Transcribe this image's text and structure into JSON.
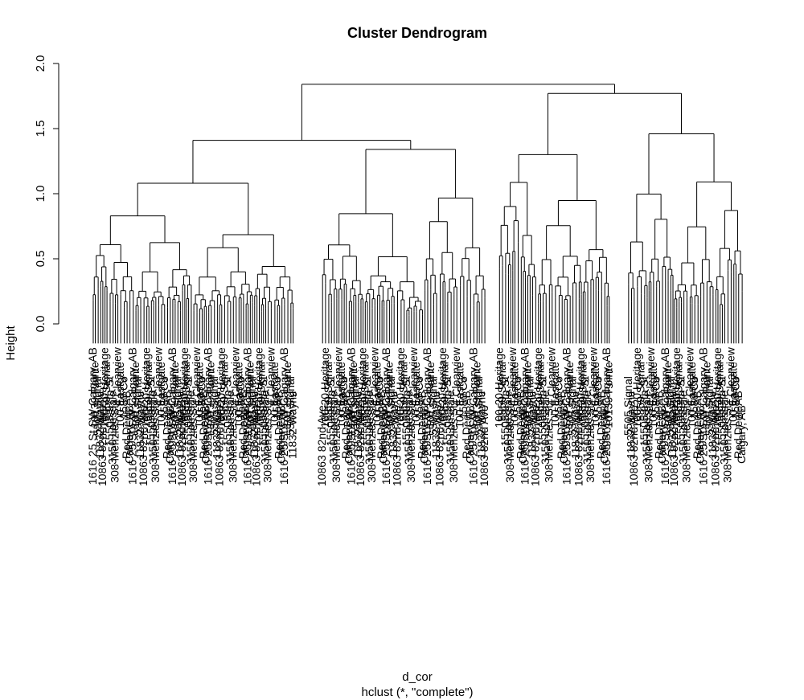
{
  "chart_data": {
    "type": "dendrogram",
    "title": "Cluster Dendrogram",
    "xlabel": "d_cor",
    "sublabel": "hclust (*, \"complete\")",
    "ylabel": "Height",
    "ylim": [
      0,
      2.0
    ],
    "yticks": [
      "0.0",
      "0.5",
      "1.0",
      "1.5",
      "2.0"
    ],
    "top_merges": [
      {
        "name": "root",
        "height": 1.84,
        "children": [
          "left-cluster",
          "right-cluster"
        ]
      },
      {
        "name": "left-cluster",
        "height": 1.41,
        "children": [
          "left-a",
          "left-b"
        ]
      },
      {
        "name": "right-cluster",
        "height": 1.77,
        "children": [
          "right-a",
          "right-b"
        ]
      },
      {
        "name": "left-a",
        "height": 1.08,
        "children": [],
        "span": [
          0.012,
          0.316
        ]
      },
      {
        "name": "left-b",
        "height": 1.34,
        "children": [],
        "span": [
          0.357,
          0.606
        ]
      },
      {
        "name": "right-a",
        "height": 1.3,
        "children": [],
        "span": [
          0.623,
          0.793
        ]
      },
      {
        "name": "right-b",
        "height": 1.46,
        "children": [],
        "span": [
          0.818,
          0.994
        ]
      }
    ],
    "leaf_labels": [
      "1616 25 St SW Calgary, AB",
      "10139 Pointe",
      "5505 Signal",
      "11832 Wayne",
      "10863 82nd Ave",
      "100-20 Heritage",
      "5859 Signal",
      "15505 97th St",
      "3150 Lonsdale",
      "308 Menzies St",
      "4 Clearview",
      "100 Eastgate",
      "1580 Co",
      "Red Deer, AB",
      "Calgary, AB"
    ]
  }
}
